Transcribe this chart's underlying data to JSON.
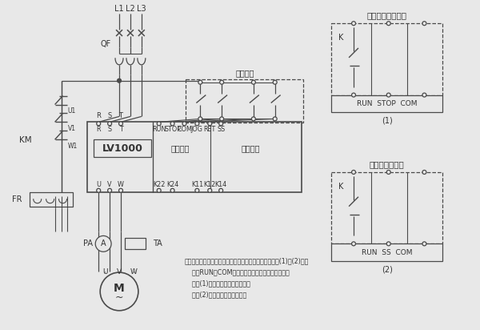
{
  "bg_color": "#e8e8e8",
  "line_color": "#4a4a4a",
  "text_color": "#333333",
  "title1": "二线控制自由停车",
  "title2": "二线控制软停车",
  "lv_label": "LV1000",
  "bypass_label": "旁路控制",
  "fault_label": "故障输出",
  "top_labels": [
    "R",
    "S",
    "T",
    "RUN",
    "STOP",
    "COM",
    "JOG",
    "RET",
    "SS"
  ],
  "bot_labels": [
    "U",
    "V",
    "W",
    "K22",
    "K24",
    "K11",
    "K12",
    "K14"
  ],
  "note_line1": "注：软启动器的外控起动、停止也可采用二线控制《见图(1)和(2)》，",
  "note_line2": "    利用RUN和COM的闭合和断开来控制启动和停止。",
  "note_line3": "    按图(1)接线，停车为自由停车；",
  "note_line4": "    按图(2)接线，停车为软停车。",
  "phase_labels": [
    "L1",
    "L2",
    "L3"
  ],
  "km_label": "KM",
  "fr_label": "FR",
  "qf_label": "QF",
  "pa_label": "PA",
  "ta_label": "TA",
  "three_wire_label": "三线控制",
  "diagram1_label": "(1)",
  "diagram2_label": "(2)",
  "k_label": "K",
  "u1_label": "U1",
  "v1_label": "V1",
  "w1_label": "W1",
  "uvw_labels": [
    "U",
    "V",
    "W"
  ],
  "rst_labels": [
    "R",
    "S",
    "T"
  ]
}
